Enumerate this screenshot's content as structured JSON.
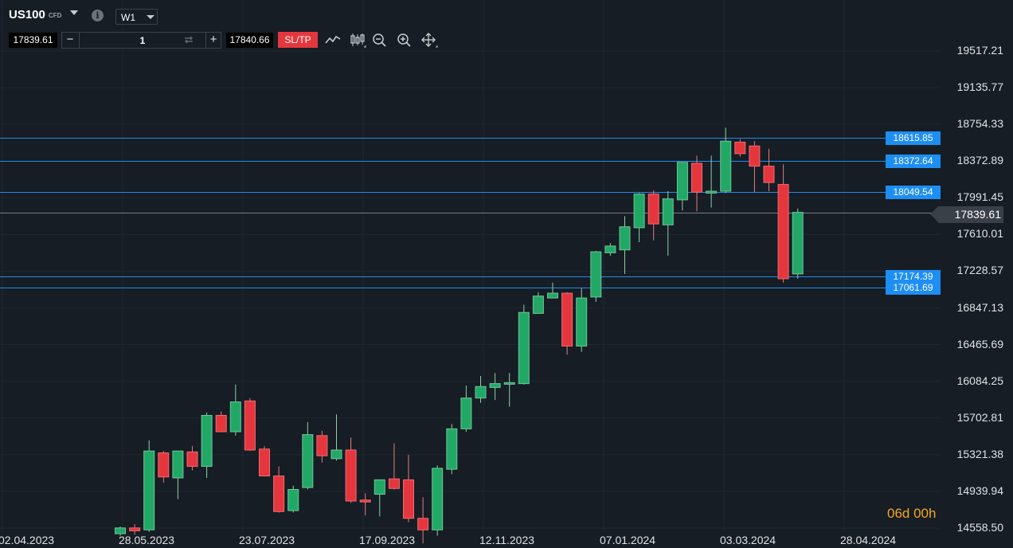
{
  "header": {
    "symbol": "US100",
    "symbol_type": "CFD",
    "timeframe": "W1",
    "bid": "17839.61",
    "ask": "17840.66",
    "quantity": "1",
    "sltp_label": "SL/TP",
    "minus_label": "−",
    "plus_label": "+",
    "info_label": "i"
  },
  "toolbar": {
    "icons": [
      "line-chart-icon",
      "candlestick-icon",
      "zoom-out-icon",
      "zoom-in-icon",
      "move-icon"
    ]
  },
  "colors": {
    "background": "#161d24",
    "bull": "#22a866",
    "bear": "#e5363e",
    "hline": "#1d8ef4",
    "tag": "#1d8ef4",
    "current_line": "#7a8088",
    "countdown": "#f5a623"
  },
  "countdown": "06d 00h",
  "chart_data": {
    "type": "candlestick",
    "symbol": "US100",
    "timeframe": "W1",
    "y_ticks": [
      "19517.21",
      "19135.77",
      "18754.33",
      "18372.89",
      "17991.45",
      "17610.01",
      "17228.57",
      "16847.13",
      "16465.69",
      "16084.25",
      "15702.81",
      "15321.38",
      "14939.94",
      "14558.50"
    ],
    "x_ticks": [
      "02.04.2023",
      "28.05.2023",
      "23.07.2023",
      "17.09.2023",
      "12.11.2023",
      "07.01.2024",
      "03.03.2024",
      "28.04.2024"
    ],
    "current_price": "17839.61",
    "horizontal_lines": [
      "18615.85",
      "18372.64",
      "18049.54",
      "17174.39",
      "17061.69"
    ],
    "candles": [
      {
        "o": 14500,
        "h": 14575,
        "l": 14480,
        "c": 14560
      },
      {
        "o": 14560,
        "h": 14600,
        "l": 14490,
        "c": 14530
      },
      {
        "o": 14540,
        "h": 15470,
        "l": 14520,
        "c": 15360
      },
      {
        "o": 15340,
        "h": 15360,
        "l": 15030,
        "c": 15090
      },
      {
        "o": 15080,
        "h": 15360,
        "l": 14860,
        "c": 15360
      },
      {
        "o": 15350,
        "h": 15410,
        "l": 15160,
        "c": 15200
      },
      {
        "o": 15200,
        "h": 15760,
        "l": 15080,
        "c": 15730
      },
      {
        "o": 15730,
        "h": 15770,
        "l": 15560,
        "c": 15560
      },
      {
        "o": 15560,
        "h": 16050,
        "l": 15520,
        "c": 15870
      },
      {
        "o": 15880,
        "h": 15910,
        "l": 15360,
        "c": 15370
      },
      {
        "o": 15380,
        "h": 15410,
        "l": 15100,
        "c": 15100
      },
      {
        "o": 15100,
        "h": 15200,
        "l": 14720,
        "c": 14730
      },
      {
        "o": 14740,
        "h": 15000,
        "l": 14720,
        "c": 14960
      },
      {
        "o": 14980,
        "h": 15660,
        "l": 14960,
        "c": 15530
      },
      {
        "o": 15520,
        "h": 15570,
        "l": 15240,
        "c": 15310
      },
      {
        "o": 15280,
        "h": 15740,
        "l": 15260,
        "c": 15370
      },
      {
        "o": 15370,
        "h": 15500,
        "l": 14820,
        "c": 14840
      },
      {
        "o": 14850,
        "h": 14920,
        "l": 14690,
        "c": 14830
      },
      {
        "o": 14910,
        "h": 15040,
        "l": 14680,
        "c": 15060
      },
      {
        "o": 15070,
        "h": 15440,
        "l": 14960,
        "c": 14970
      },
      {
        "o": 15060,
        "h": 15320,
        "l": 14620,
        "c": 14660
      },
      {
        "o": 14660,
        "h": 14880,
        "l": 14400,
        "c": 14540
      },
      {
        "o": 14540,
        "h": 15210,
        "l": 14480,
        "c": 15180
      },
      {
        "o": 15170,
        "h": 15640,
        "l": 15120,
        "c": 15590
      },
      {
        "o": 15590,
        "h": 16040,
        "l": 15560,
        "c": 15910
      },
      {
        "o": 15910,
        "h": 16140,
        "l": 15860,
        "c": 16030
      },
      {
        "o": 16020,
        "h": 16170,
        "l": 15890,
        "c": 16060
      },
      {
        "o": 16060,
        "h": 16170,
        "l": 15820,
        "c": 16070
      },
      {
        "o": 16060,
        "h": 16880,
        "l": 16050,
        "c": 16800
      },
      {
        "o": 16790,
        "h": 17010,
        "l": 16790,
        "c": 16970
      },
      {
        "o": 16950,
        "h": 17110,
        "l": 16950,
        "c": 17000
      },
      {
        "o": 17000,
        "h": 17010,
        "l": 16360,
        "c": 16450
      },
      {
        "o": 16450,
        "h": 17050,
        "l": 16390,
        "c": 16950
      },
      {
        "o": 16960,
        "h": 17440,
        "l": 16910,
        "c": 17430
      },
      {
        "o": 17420,
        "h": 17520,
        "l": 17390,
        "c": 17490
      },
      {
        "o": 17450,
        "h": 17800,
        "l": 17200,
        "c": 17690
      },
      {
        "o": 17680,
        "h": 18040,
        "l": 17530,
        "c": 18030
      },
      {
        "o": 18030,
        "h": 18070,
        "l": 17550,
        "c": 17720
      },
      {
        "o": 17710,
        "h": 18060,
        "l": 17390,
        "c": 17980
      },
      {
        "o": 17970,
        "h": 18360,
        "l": 17860,
        "c": 18360
      },
      {
        "o": 18350,
        "h": 18430,
        "l": 17850,
        "c": 18050
      },
      {
        "o": 18040,
        "h": 18430,
        "l": 17890,
        "c": 18060
      },
      {
        "o": 18060,
        "h": 18720,
        "l": 18040,
        "c": 18580
      },
      {
        "o": 18570,
        "h": 18600,
        "l": 18420,
        "c": 18450
      },
      {
        "o": 18530,
        "h": 18580,
        "l": 18050,
        "c": 18320
      },
      {
        "o": 18320,
        "h": 18500,
        "l": 18060,
        "c": 18150
      },
      {
        "o": 18130,
        "h": 18340,
        "l": 17110,
        "c": 17150
      },
      {
        "o": 17200,
        "h": 17880,
        "l": 17150,
        "c": 17840
      }
    ]
  }
}
